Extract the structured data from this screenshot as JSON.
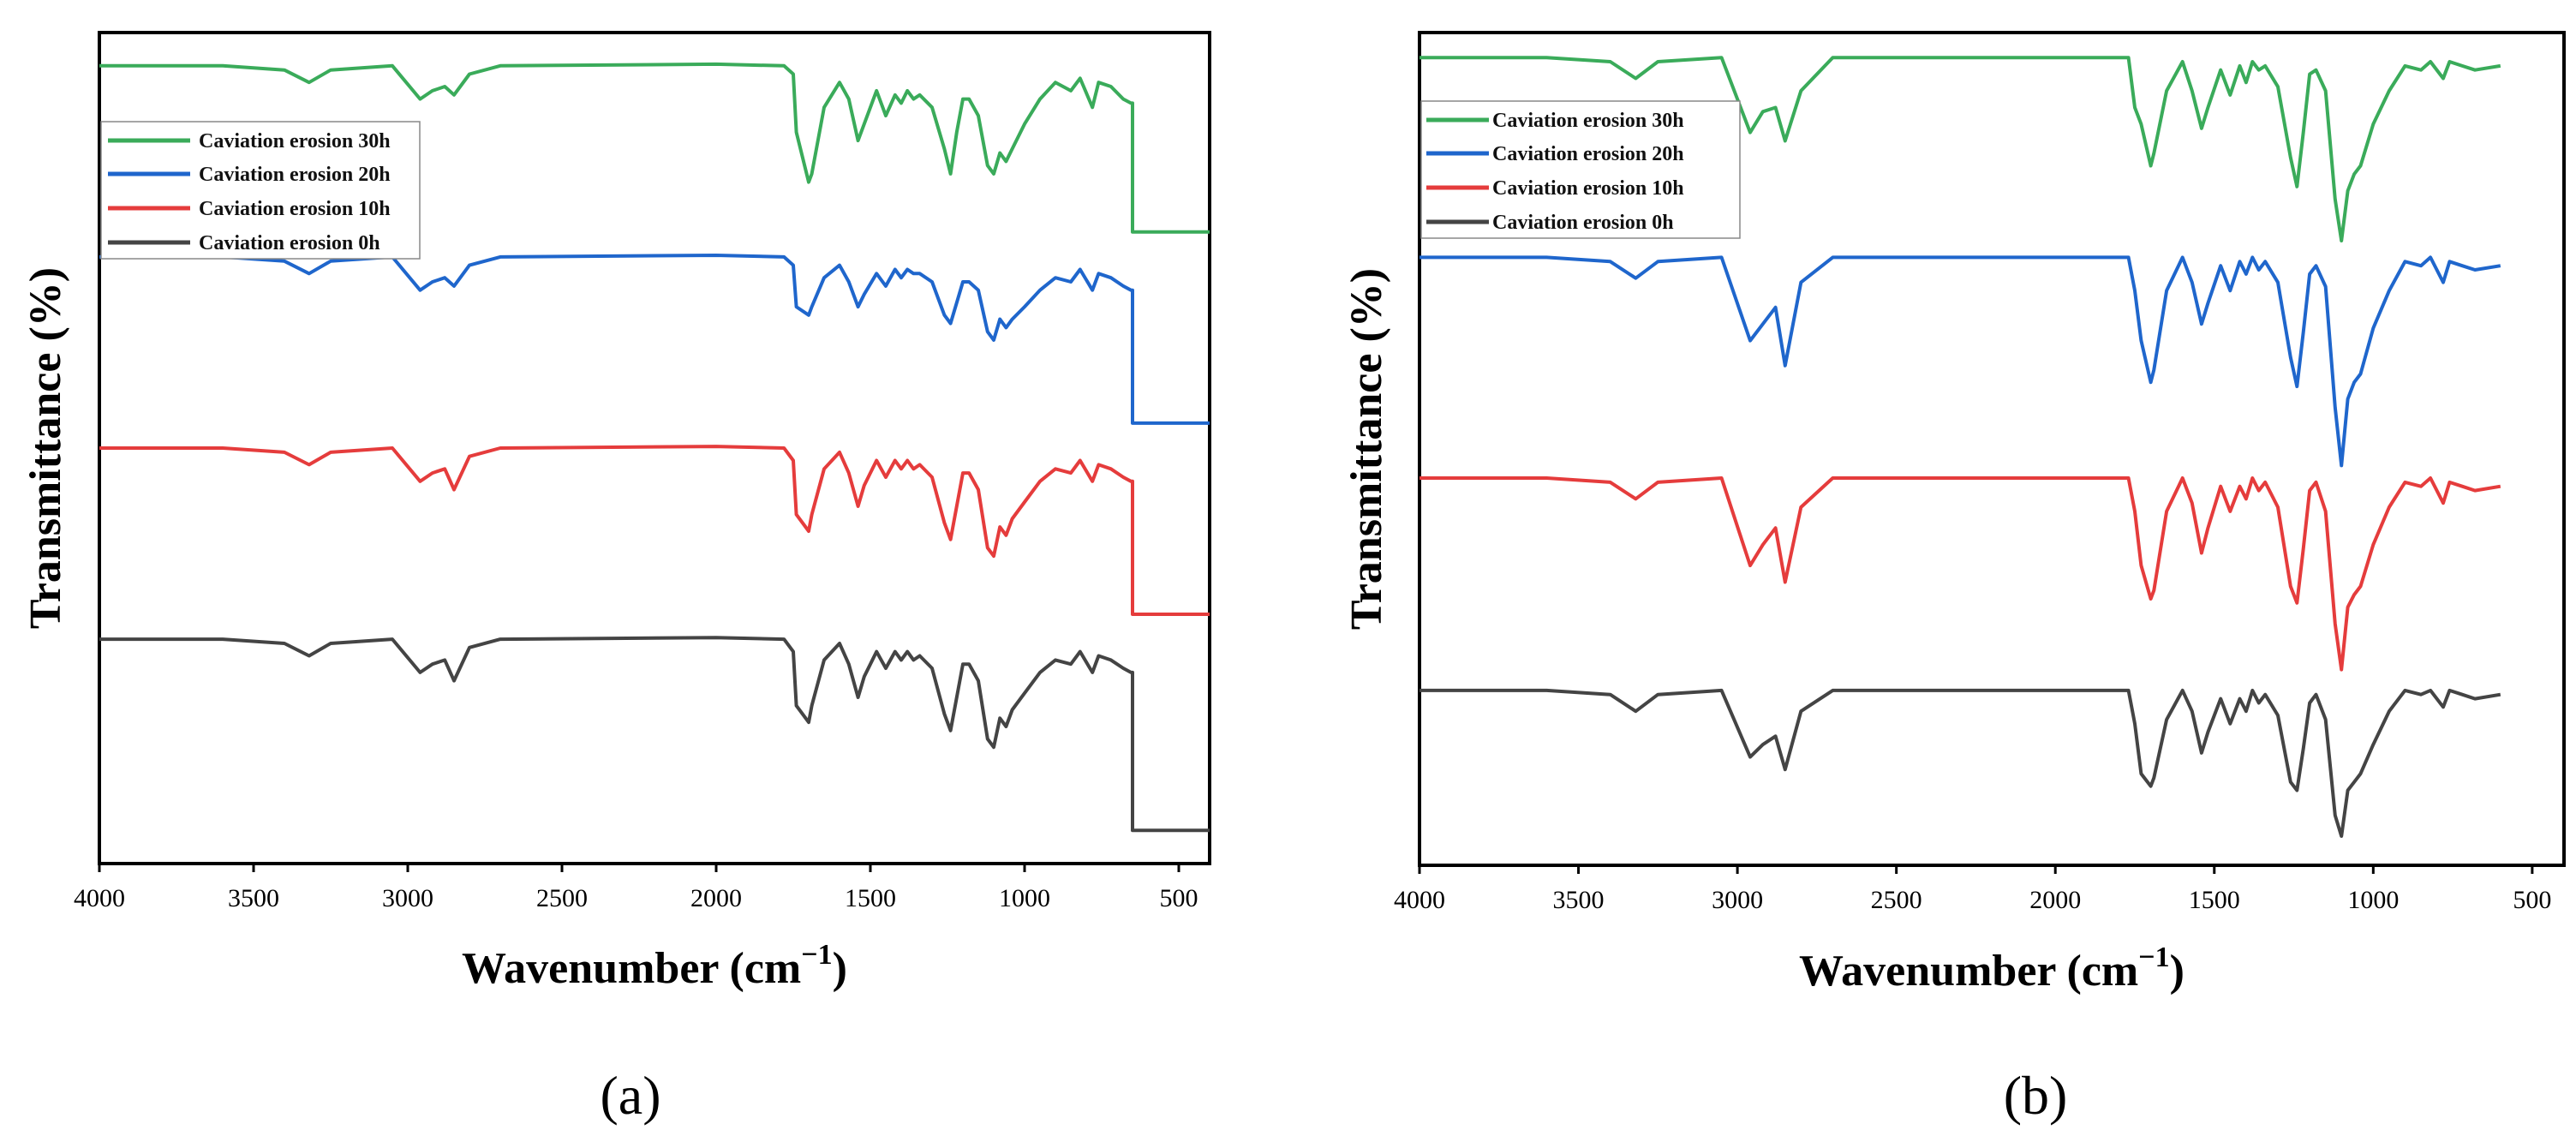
{
  "chart_data": [
    {
      "type": "line",
      "panel_label": "(a)",
      "xlabel": "Wavenumber (cm",
      "xlabel_sup": "−1",
      "xlabel_close": ")",
      "ylabel": "Transmittance (%)",
      "xlim": [
        4000,
        400
      ],
      "ylim": [
        0,
        100
      ],
      "xticks": [
        4000,
        3500,
        3000,
        2500,
        2000,
        1500,
        1000,
        500
      ],
      "grid": false,
      "legend_position": "top-left",
      "series": [
        {
          "name": "Caviation erosion 30h",
          "color": "#3aab5a",
          "x": [
            4000,
            3600,
            3400,
            3320,
            3250,
            3050,
            2960,
            2920,
            2880,
            2850,
            2800,
            2700,
            2000,
            1780,
            1750,
            1740,
            1700,
            1690,
            1650,
            1600,
            1570,
            1540,
            1520,
            1480,
            1450,
            1420,
            1400,
            1380,
            1360,
            1340,
            1300,
            1260,
            1240,
            1220,
            1200,
            1180,
            1150,
            1120,
            1100,
            1080,
            1060,
            1040,
            1000,
            950,
            900,
            850,
            820,
            780,
            760,
            720,
            680,
            655,
            650,
            650,
            400
          ],
          "y": [
            96,
            96,
            95.5,
            94,
            95.5,
            96,
            92,
            93,
            93.5,
            92.5,
            95,
            96,
            96.2,
            96,
            95,
            88,
            82,
            83,
            91,
            94,
            92,
            87,
            89,
            93,
            90,
            92.5,
            91.5,
            93,
            92,
            92.5,
            91,
            86,
            83,
            88,
            92,
            92,
            90,
            84,
            83,
            85.5,
            84.5,
            86,
            89,
            92,
            94,
            93,
            94.5,
            91,
            94,
            93.5,
            92,
            91.5,
            91.5,
            76,
            76
          ]
        },
        {
          "name": "Caviation erosion 20h",
          "color": "#1f66cc",
          "x": [
            4000,
            3600,
            3400,
            3320,
            3250,
            3050,
            2960,
            2920,
            2880,
            2850,
            2800,
            2700,
            2000,
            1780,
            1750,
            1740,
            1700,
            1690,
            1650,
            1600,
            1570,
            1540,
            1520,
            1480,
            1450,
            1420,
            1400,
            1380,
            1360,
            1340,
            1300,
            1260,
            1240,
            1220,
            1200,
            1180,
            1150,
            1120,
            1100,
            1080,
            1060,
            1040,
            1000,
            950,
            900,
            850,
            820,
            780,
            760,
            720,
            680,
            655,
            650,
            650,
            400
          ],
          "y": [
            73,
            73,
            72.5,
            71,
            72.5,
            73,
            69,
            70,
            70.5,
            69.5,
            72,
            73,
            73.2,
            73,
            72,
            67,
            66,
            67,
            70.5,
            72,
            70,
            67,
            68.5,
            71,
            69.5,
            71.5,
            70.5,
            71.5,
            71,
            71,
            70,
            66,
            65,
            67.5,
            70,
            70,
            69,
            64,
            63,
            65.5,
            64.5,
            65.5,
            67,
            69,
            70.5,
            70,
            71.5,
            69,
            71,
            70.5,
            69.5,
            69,
            69,
            53,
            53
          ]
        },
        {
          "name": "Caviation erosion 10h",
          "color": "#e53c3c",
          "x": [
            4000,
            3600,
            3400,
            3320,
            3250,
            3050,
            2960,
            2920,
            2880,
            2850,
            2800,
            2700,
            2000,
            1780,
            1750,
            1740,
            1700,
            1690,
            1650,
            1600,
            1570,
            1540,
            1520,
            1480,
            1450,
            1420,
            1400,
            1380,
            1360,
            1340,
            1300,
            1260,
            1240,
            1220,
            1200,
            1180,
            1150,
            1120,
            1100,
            1080,
            1060,
            1040,
            1000,
            950,
            900,
            850,
            820,
            780,
            760,
            720,
            680,
            655,
            650,
            650,
            400
          ],
          "y": [
            50,
            50,
            49.5,
            48,
            49.5,
            50,
            46,
            47,
            47.5,
            45,
            49,
            50,
            50.2,
            50,
            48.5,
            42,
            40,
            42,
            47.5,
            49.5,
            47,
            43,
            45.5,
            48.5,
            46.5,
            48.5,
            47.5,
            48.5,
            47.5,
            48,
            46.5,
            41,
            39,
            43,
            47,
            47,
            45,
            38,
            37,
            40.5,
            39.5,
            41.5,
            43.5,
            46,
            47.5,
            47,
            48.5,
            46,
            48,
            47.5,
            46.5,
            46,
            46,
            30,
            30
          ]
        },
        {
          "name": "Caviation erosion 0h",
          "color": "#444444",
          "x": [
            4000,
            3600,
            3400,
            3320,
            3250,
            3050,
            2960,
            2920,
            2880,
            2850,
            2800,
            2700,
            2000,
            1780,
            1750,
            1740,
            1700,
            1690,
            1650,
            1600,
            1570,
            1540,
            1520,
            1480,
            1450,
            1420,
            1400,
            1380,
            1360,
            1340,
            1300,
            1260,
            1240,
            1220,
            1200,
            1180,
            1150,
            1120,
            1100,
            1080,
            1060,
            1040,
            1000,
            950,
            900,
            850,
            820,
            780,
            760,
            720,
            680,
            655,
            650,
            650,
            400
          ],
          "y": [
            27,
            27,
            26.5,
            25,
            26.5,
            27,
            23,
            24,
            24.5,
            22,
            26,
            27,
            27.2,
            27,
            25.5,
            19,
            17,
            19,
            24.5,
            26.5,
            24,
            20,
            22.5,
            25.5,
            23.5,
            25.5,
            24.5,
            25.5,
            24.5,
            25,
            23.5,
            18,
            16,
            20,
            24,
            24,
            22,
            15,
            14,
            17.5,
            16.5,
            18.5,
            20.5,
            23,
            24.5,
            24,
            25.5,
            23,
            25,
            24.5,
            23.5,
            23,
            23,
            4,
            4
          ]
        }
      ]
    },
    {
      "type": "line",
      "panel_label": "(b)",
      "xlabel": "Wavenumber (cm",
      "xlabel_sup": "−1",
      "xlabel_close": ")",
      "ylabel": "Transmittance (%)",
      "xlim": [
        4000,
        400
      ],
      "ylim": [
        0,
        100
      ],
      "xticks": [
        4000,
        3500,
        3000,
        2500,
        2000,
        1500,
        1000,
        500
      ],
      "grid": false,
      "legend_position": "top-left",
      "series": [
        {
          "name": "Caviation erosion 30h",
          "color": "#3aab5a",
          "x": [
            4000,
            3600,
            3400,
            3320,
            3250,
            3050,
            2960,
            2920,
            2880,
            2850,
            2800,
            2700,
            2000,
            1770,
            1750,
            1730,
            1700,
            1690,
            1650,
            1600,
            1570,
            1540,
            1520,
            1480,
            1450,
            1420,
            1400,
            1380,
            1360,
            1340,
            1300,
            1260,
            1240,
            1220,
            1200,
            1180,
            1150,
            1120,
            1100,
            1080,
            1060,
            1040,
            1000,
            950,
            900,
            850,
            820,
            780,
            760,
            720,
            680,
            600
          ],
          "y": [
            97,
            97,
            96.5,
            94.5,
            96.5,
            97,
            88,
            90.5,
            91,
            87,
            93,
            97,
            97,
            97,
            91,
            89,
            84,
            85.5,
            93,
            96.5,
            93,
            88.5,
            91,
            95.5,
            92.5,
            96,
            94,
            96.5,
            95.5,
            96,
            93.5,
            85,
            81.5,
            88,
            95,
            95.5,
            93,
            80,
            75,
            81,
            83,
            84,
            89,
            93,
            96,
            95.5,
            96.5,
            94.5,
            96.5,
            96,
            95.5,
            96
          ]
        },
        {
          "name": "Caviation erosion 20h",
          "color": "#1f66cc",
          "x": [
            4000,
            3600,
            3400,
            3320,
            3250,
            3050,
            2960,
            2920,
            2880,
            2850,
            2800,
            2700,
            2000,
            1770,
            1750,
            1730,
            1700,
            1690,
            1650,
            1600,
            1570,
            1540,
            1520,
            1480,
            1450,
            1420,
            1400,
            1380,
            1360,
            1340,
            1300,
            1260,
            1240,
            1220,
            1200,
            1180,
            1150,
            1120,
            1100,
            1080,
            1060,
            1040,
            1000,
            950,
            900,
            850,
            820,
            780,
            760,
            720,
            680,
            600
          ],
          "y": [
            73,
            73,
            72.5,
            70.5,
            72.5,
            73,
            63,
            65,
            67,
            60,
            70,
            73,
            73,
            73,
            69,
            63,
            58,
            59.5,
            69,
            73,
            70,
            65,
            67.5,
            72,
            69,
            72.5,
            71,
            73,
            71.5,
            72.5,
            70,
            61,
            57.5,
            64,
            71,
            72,
            69.5,
            55,
            48,
            56,
            58,
            59,
            64.5,
            69,
            72.5,
            72,
            73,
            70,
            72.5,
            72,
            71.5,
            72
          ]
        },
        {
          "name": "Caviation erosion 10h",
          "color": "#e53c3c",
          "x": [
            4000,
            3600,
            3400,
            3320,
            3250,
            3050,
            2960,
            2920,
            2880,
            2850,
            2800,
            2700,
            2000,
            1770,
            1750,
            1730,
            1700,
            1690,
            1650,
            1600,
            1570,
            1540,
            1520,
            1480,
            1450,
            1420,
            1400,
            1380,
            1360,
            1340,
            1300,
            1260,
            1240,
            1220,
            1200,
            1180,
            1150,
            1120,
            1100,
            1080,
            1060,
            1040,
            1000,
            950,
            900,
            850,
            820,
            780,
            760,
            720,
            680,
            600
          ],
          "y": [
            46.5,
            46.5,
            46,
            44,
            46,
            46.5,
            36,
            38.5,
            40.5,
            34,
            43,
            46.5,
            46.5,
            46.5,
            42.5,
            36,
            32,
            33,
            42.5,
            46.5,
            43.5,
            37.5,
            40.5,
            45.5,
            42.5,
            45.5,
            44,
            46.5,
            45,
            46,
            43,
            33.5,
            31.5,
            38,
            45,
            46,
            42.5,
            29,
            23.5,
            31,
            32.5,
            33.5,
            38.5,
            43,
            46,
            45.5,
            46.5,
            43.5,
            46,
            45.5,
            45,
            45.5
          ]
        },
        {
          "name": "Caviation erosion 0h",
          "color": "#444444",
          "x": [
            4000,
            3600,
            3400,
            3320,
            3250,
            3050,
            2960,
            2920,
            2880,
            2850,
            2800,
            2700,
            2000,
            1770,
            1750,
            1730,
            1700,
            1690,
            1650,
            1600,
            1570,
            1540,
            1520,
            1480,
            1450,
            1420,
            1400,
            1380,
            1360,
            1340,
            1300,
            1260,
            1240,
            1220,
            1200,
            1180,
            1150,
            1120,
            1100,
            1080,
            1060,
            1040,
            1000,
            950,
            900,
            850,
            820,
            780,
            760,
            720,
            680,
            600
          ],
          "y": [
            21,
            21,
            20.5,
            18.5,
            20.5,
            21,
            13,
            14.5,
            15.5,
            11.5,
            18.5,
            21,
            21,
            21,
            17,
            11,
            9.5,
            10.5,
            17.5,
            21,
            18.5,
            13.5,
            16,
            20,
            17,
            20,
            18.5,
            21,
            19.5,
            20.5,
            18,
            10,
            9,
            14,
            19.5,
            20.5,
            17.5,
            6,
            3.5,
            9,
            10,
            11,
            14.5,
            18.5,
            21,
            20.5,
            21,
            19,
            21,
            20.5,
            20,
            20.5
          ]
        }
      ]
    }
  ]
}
